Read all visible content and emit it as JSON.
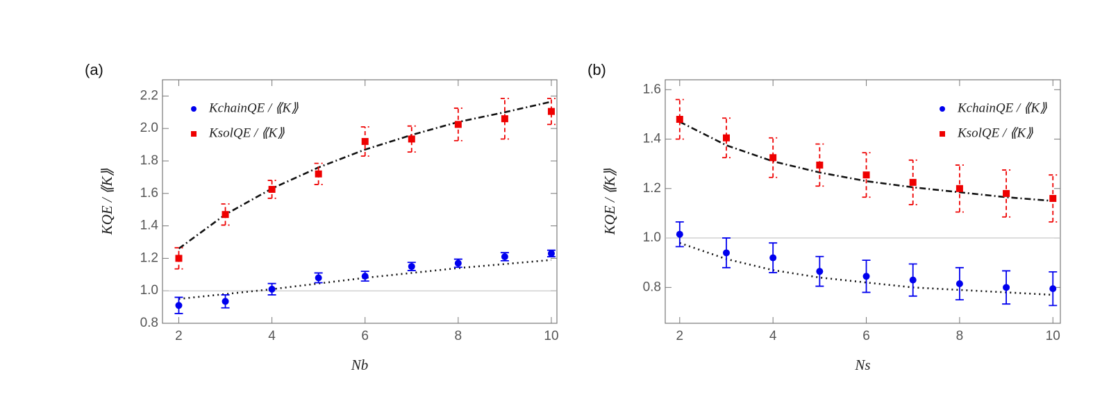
{
  "chart_data": [
    {
      "type": "scatter",
      "title": "(a)",
      "x_label": "Nb",
      "y_label": "KQE / ⟪K⟫",
      "x": [
        2,
        3,
        4,
        5,
        6,
        7,
        8,
        9,
        10
      ],
      "xlim": [
        1.65,
        10.12
      ],
      "ylim": [
        0.8,
        2.3
      ],
      "xticks": [
        2,
        4,
        6,
        8,
        10
      ],
      "yticks": [
        0.8,
        {
          "value": 1,
          "label": "1.0"
        },
        1.2,
        1.4,
        1.6,
        1.8,
        {
          "value": 2,
          "label": "2.0"
        },
        2.2
      ],
      "hline": 1,
      "legend": "upper left",
      "series": [
        {
          "name": "KchainQE / ⟪K⟫",
          "color": "#0000ee",
          "marker": "circle",
          "error_style": "solid",
          "values": [
            0.91,
            0.935,
            1.01,
            1.08,
            1.09,
            1.15,
            1.17,
            1.21,
            1.23
          ],
          "errors": [
            0.05,
            0.04,
            0.035,
            0.03,
            0.03,
            0.025,
            0.025,
            0.025,
            0.02
          ]
        },
        {
          "name": "KsolQE / ⟪K⟫",
          "color": "#ee0000",
          "marker": "square",
          "error_style": "dashed",
          "values": [
            1.2,
            1.47,
            1.625,
            1.72,
            1.92,
            1.935,
            2.025,
            2.06,
            2.105
          ],
          "errors": [
            0.065,
            0.065,
            0.055,
            0.065,
            0.09,
            0.08,
            0.1,
            0.125,
            0.08
          ]
        }
      ],
      "fits": [
        {
          "color": "#111111",
          "dash": "dotted",
          "values": [
            0.95,
            0.98,
            1.01,
            1.045,
            1.08,
            1.11,
            1.14,
            1.165,
            1.19
          ]
        },
        {
          "color": "#111111",
          "dash": "dashdot",
          "values": [
            1.26,
            1.47,
            1.63,
            1.76,
            1.87,
            1.96,
            2.04,
            2.1,
            2.165
          ]
        }
      ]
    },
    {
      "type": "scatter",
      "title": "(b)",
      "x_label": "Ns",
      "y_label": "KQE / ⟪K⟫",
      "x": [
        2,
        3,
        4,
        5,
        6,
        7,
        8,
        9,
        10
      ],
      "xlim": [
        1.69,
        10.16
      ],
      "ylim": [
        0.655,
        1.64
      ],
      "xticks": [
        2,
        4,
        6,
        8,
        10
      ],
      "yticks": [
        0.8,
        {
          "value": 1,
          "label": "1.0"
        },
        1.2,
        1.4,
        1.6
      ],
      "hline": 1,
      "legend": "upper right",
      "series": [
        {
          "name": "KchainQE / ⟪K⟫",
          "color": "#0000ee",
          "marker": "circle",
          "error_style": "solid",
          "values": [
            1.015,
            0.94,
            0.92,
            0.865,
            0.845,
            0.83,
            0.815,
            0.8,
            0.795
          ],
          "errors": [
            0.05,
            0.06,
            0.06,
            0.06,
            0.065,
            0.065,
            0.065,
            0.067,
            0.068
          ]
        },
        {
          "name": "KsolQE / ⟪K⟫",
          "color": "#ee0000",
          "marker": "square",
          "error_style": "dashed",
          "values": [
            1.48,
            1.405,
            1.325,
            1.295,
            1.255,
            1.225,
            1.2,
            1.18,
            1.16
          ],
          "errors": [
            0.08,
            0.08,
            0.08,
            0.085,
            0.09,
            0.09,
            0.095,
            0.095,
            0.095
          ]
        }
      ],
      "fits": [
        {
          "color": "#111111",
          "dash": "dotted",
          "values": [
            0.98,
            0.915,
            0.87,
            0.84,
            0.82,
            0.8,
            0.79,
            0.78,
            0.77
          ]
        },
        {
          "color": "#111111",
          "dash": "dashdot",
          "values": [
            1.47,
            1.375,
            1.31,
            1.265,
            1.23,
            1.205,
            1.185,
            1.165,
            1.15
          ]
        }
      ]
    }
  ]
}
